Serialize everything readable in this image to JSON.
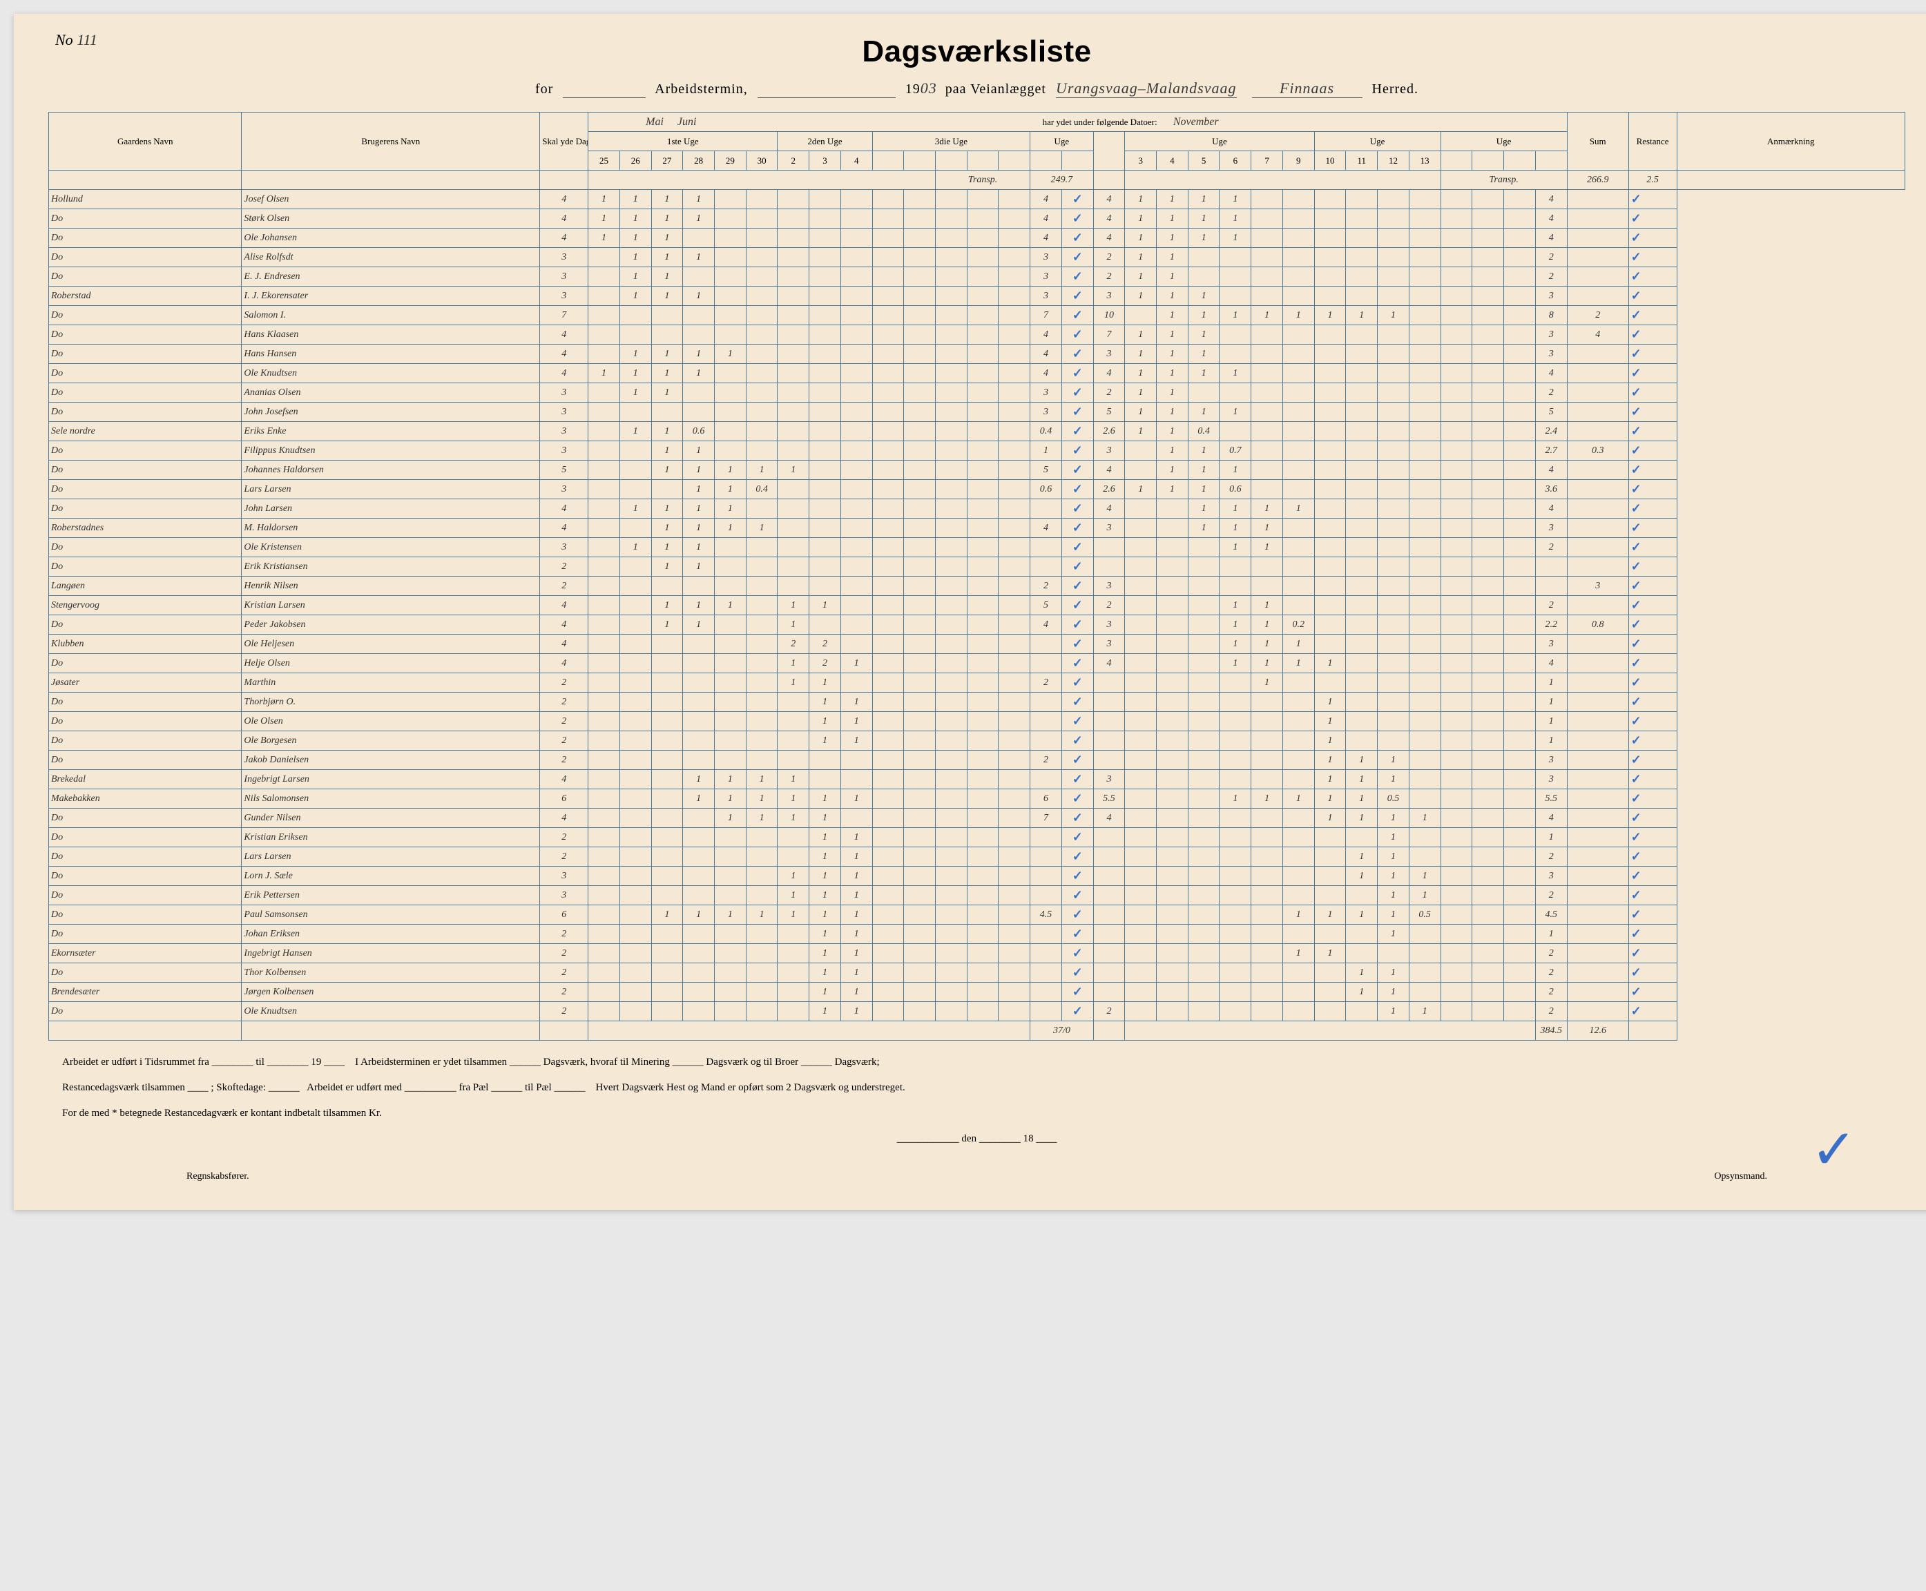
{
  "meta": {
    "page_no_label": "No",
    "page_no": "111",
    "title": "Dagsværksliste",
    "for_label": "for",
    "termin_label": "Arbeidstermin,",
    "year_prefix": "19",
    "year_suffix": "03",
    "paa_label": "paa Veianlægget",
    "anlegg": "Urangsvaag–Malandsvaag",
    "herred": "Finnaas",
    "herred_label": "Herred.",
    "datoer_label": "har ydet under følgende Datoer:",
    "month1": "Mai",
    "month2": "Juni",
    "month3": "November"
  },
  "columns": {
    "gaard": "Gaardens Navn",
    "bruger": "Brugerens Navn",
    "skal": "Skal yde Dagsværk",
    "uge1": "1ste Uge",
    "uge2": "2den Uge",
    "uge3": "3die Uge",
    "uge_g": "Uge",
    "sum": "Sum",
    "rest": "Restance",
    "anm": "Anmærkning",
    "days_a": [
      "25",
      "26",
      "27",
      "28",
      "29",
      "30",
      "2",
      "3",
      "4"
    ],
    "days_b": [
      "3",
      "4",
      "5",
      "6",
      "7",
      "9",
      "10",
      "11",
      "12",
      "13"
    ]
  },
  "transp_in": {
    "label": "Transp.",
    "value": "249.7"
  },
  "transp_out": {
    "label": "Transp.",
    "value": "266.9",
    "rest": "2.5"
  },
  "rows": [
    {
      "g": "Hollund",
      "n": "Josef Olsen",
      "s": "4",
      "a": [
        1,
        1,
        1,
        1,
        0,
        0,
        0,
        0,
        0
      ],
      "m": "4",
      "b": [
        1,
        1,
        1,
        1,
        0,
        0,
        0,
        0,
        0,
        0
      ],
      "sum": "4",
      "r": "",
      "chk": true,
      "c2": "4"
    },
    {
      "g": "Do",
      "n": "Størk Olsen",
      "s": "4",
      "a": [
        1,
        1,
        1,
        1,
        0,
        0,
        0,
        0,
        0
      ],
      "m": "4",
      "b": [
        1,
        1,
        1,
        1,
        0,
        0,
        0,
        0,
        0,
        0
      ],
      "sum": "4",
      "r": "",
      "chk": true,
      "c2": "4"
    },
    {
      "g": "Do",
      "n": "Ole Johansen",
      "s": "4",
      "a": [
        1,
        1,
        1,
        0,
        0,
        0,
        0,
        0,
        0
      ],
      "m": "4",
      "b": [
        1,
        1,
        1,
        1,
        0,
        0,
        0,
        0,
        0,
        0
      ],
      "sum": "4",
      "r": "",
      "chk": true,
      "c2": "4"
    },
    {
      "g": "Do",
      "n": "Alise Rolfsdt",
      "s": "3",
      "a": [
        0,
        1,
        1,
        1,
        0,
        0,
        0,
        0,
        0
      ],
      "m": "3",
      "b": [
        1,
        1,
        0,
        0,
        0,
        0,
        0,
        0,
        0,
        0
      ],
      "sum": "2",
      "r": "",
      "chk": true,
      "c2": "2"
    },
    {
      "g": "Do",
      "n": "E. J. Endresen",
      "s": "3",
      "a": [
        0,
        1,
        1,
        0,
        0,
        0,
        0,
        0,
        0
      ],
      "m": "3",
      "b": [
        1,
        1,
        0,
        0,
        0,
        0,
        0,
        0,
        0,
        0
      ],
      "sum": "2",
      "r": "",
      "chk": true,
      "c2": "2"
    },
    {
      "g": "Roberstad",
      "n": "I. J. Ekorensater",
      "s": "3",
      "a": [
        0,
        1,
        1,
        1,
        0,
        0,
        0,
        0,
        0
      ],
      "m": "3",
      "b": [
        1,
        1,
        1,
        0,
        0,
        0,
        0,
        0,
        0,
        0
      ],
      "sum": "3",
      "r": "",
      "chk": true,
      "c2": "3"
    },
    {
      "g": "Do",
      "n": "Salomon I.",
      "s": "7",
      "a": [
        0,
        0,
        0,
        0,
        0,
        0,
        0,
        0,
        0
      ],
      "m": "7",
      "b": [
        0,
        1,
        1,
        1,
        1,
        1,
        1,
        1,
        1,
        0
      ],
      "sum": "8",
      "r": "2",
      "chk": true,
      "c2": "10"
    },
    {
      "g": "Do",
      "n": "Hans Klaasen",
      "s": "4",
      "a": [
        0,
        0,
        0,
        0,
        0,
        0,
        0,
        0,
        0
      ],
      "m": "4",
      "b": [
        1,
        1,
        1,
        0,
        0,
        0,
        0,
        0,
        0,
        0
      ],
      "sum": "3",
      "r": "4",
      "chk": true,
      "c2": "7"
    },
    {
      "g": "Do",
      "n": "Hans Hansen",
      "s": "4",
      "a": [
        0,
        1,
        1,
        1,
        1,
        0,
        0,
        0,
        0
      ],
      "m": "4",
      "b": [
        1,
        1,
        1,
        0,
        0,
        0,
        0,
        0,
        0,
        0
      ],
      "sum": "3",
      "r": "",
      "chk": true,
      "c2": "3"
    },
    {
      "g": "Do",
      "n": "Ole Knudtsen",
      "s": "4",
      "a": [
        1,
        1,
        1,
        1,
        0,
        0,
        0,
        0,
        0
      ],
      "m": "4",
      "b": [
        1,
        1,
        1,
        1,
        0,
        0,
        0,
        0,
        0,
        0
      ],
      "sum": "4",
      "r": "",
      "chk": true,
      "c2": "4"
    },
    {
      "g": "Do",
      "n": "Ananias Olsen",
      "s": "3",
      "a": [
        0,
        1,
        1,
        0,
        0,
        0,
        0,
        0,
        0
      ],
      "m": "3",
      "b": [
        1,
        1,
        0,
        0,
        0,
        0,
        0,
        0,
        0,
        0
      ],
      "sum": "2",
      "r": "",
      "chk": true,
      "c2": "2"
    },
    {
      "g": "Do",
      "n": "John Josefsen",
      "s": "3",
      "a": [
        0,
        0,
        0,
        0,
        0,
        0,
        0,
        0,
        0
      ],
      "m": "3",
      "b": [
        1,
        1,
        1,
        1,
        0,
        0,
        0,
        0,
        0,
        0
      ],
      "sum": "5",
      "r": "",
      "chk": true,
      "c2": "5"
    },
    {
      "g": "Sele nordre",
      "n": "Eriks Enke",
      "s": "3",
      "a": [
        0,
        1,
        1,
        "0.6",
        0,
        0,
        0,
        0,
        0
      ],
      "m": "0.4",
      "b": [
        1,
        1,
        "0.4",
        0,
        0,
        0,
        0,
        0,
        0,
        0
      ],
      "sum": "2.4",
      "r": "",
      "chk": true,
      "c2": "2.6"
    },
    {
      "g": "Do",
      "n": "Filippus Knudtsen",
      "s": "3",
      "a": [
        0,
        0,
        1,
        1,
        0,
        0,
        0,
        0,
        0
      ],
      "m": "1",
      "b": [
        0,
        1,
        1,
        "0.7",
        0,
        0,
        0,
        0,
        0,
        0
      ],
      "sum": "2.7",
      "r": "0.3",
      "chk": true,
      "c2": "3"
    },
    {
      "g": "Do",
      "n": "Johannes Haldorsen",
      "s": "5",
      "a": [
        0,
        0,
        1,
        1,
        1,
        1,
        1,
        0,
        0
      ],
      "m": "5",
      "b": [
        0,
        1,
        1,
        1,
        0,
        0,
        0,
        0,
        0,
        0
      ],
      "sum": "4",
      "r": "",
      "chk": true,
      "c2": "4"
    },
    {
      "g": "Do",
      "n": "Lars Larsen",
      "s": "3",
      "a": [
        0,
        0,
        0,
        1,
        1,
        "0.4",
        0,
        0,
        0
      ],
      "m": "0.6",
      "b": [
        1,
        1,
        1,
        "0.6",
        0,
        0,
        0,
        0,
        0,
        0
      ],
      "sum": "3.6",
      "r": "",
      "chk": true,
      "c2": "2.6"
    },
    {
      "g": "Do",
      "n": "John Larsen",
      "s": "4",
      "a": [
        0,
        1,
        1,
        1,
        1,
        0,
        0,
        0,
        0
      ],
      "m": "",
      "b": [
        0,
        0,
        1,
        1,
        1,
        1,
        0,
        0,
        0,
        0
      ],
      "sum": "4",
      "r": "",
      "chk": true,
      "c2": "4"
    },
    {
      "g": "Roberstadnes",
      "n": "M. Haldorsen",
      "s": "4",
      "a": [
        0,
        0,
        1,
        1,
        1,
        1,
        0,
        0,
        0
      ],
      "m": "4",
      "b": [
        0,
        0,
        1,
        1,
        1,
        0,
        0,
        0,
        0,
        0
      ],
      "sum": "3",
      "r": "",
      "chk": true,
      "c2": "3"
    },
    {
      "g": "Do",
      "n": "Ole Kristensen",
      "s": "3",
      "a": [
        0,
        1,
        1,
        1,
        0,
        0,
        0,
        0,
        0
      ],
      "m": "",
      "b": [
        0,
        0,
        0,
        1,
        1,
        0,
        0,
        0,
        0,
        0
      ],
      "sum": "2",
      "r": "",
      "chk": true,
      "c2": ""
    },
    {
      "g": "Do",
      "n": "Erik Kristiansen",
      "s": "2",
      "a": [
        0,
        0,
        1,
        1,
        0,
        0,
        0,
        0,
        0
      ],
      "m": "",
      "b": [
        0,
        0,
        0,
        0,
        0,
        0,
        0,
        0,
        0,
        0
      ],
      "sum": "",
      "r": "",
      "chk": true,
      "c2": ""
    },
    {
      "g": "Langøen",
      "n": "Henrik Nilsen",
      "s": "2",
      "a": [
        0,
        0,
        0,
        0,
        0,
        0,
        0,
        0,
        0
      ],
      "m": "2",
      "b": [
        0,
        0,
        0,
        0,
        0,
        0,
        0,
        0,
        0,
        0
      ],
      "sum": "",
      "r": "3",
      "chk": true,
      "c2": "3"
    },
    {
      "g": "Stengervoog",
      "n": "Kristian Larsen",
      "s": "4",
      "a": [
        0,
        0,
        1,
        1,
        1,
        0,
        1,
        1,
        0
      ],
      "m": "5",
      "b": [
        0,
        0,
        0,
        1,
        1,
        0,
        0,
        0,
        0,
        0
      ],
      "sum": "2",
      "r": "",
      "chk": true,
      "c2": "2"
    },
    {
      "g": "Do",
      "n": "Peder Jakobsen",
      "s": "4",
      "a": [
        0,
        0,
        1,
        1,
        0,
        0,
        1,
        0,
        0
      ],
      "m": "4",
      "b": [
        0,
        0,
        0,
        1,
        1,
        "0.2",
        0,
        0,
        0,
        0
      ],
      "sum": "2.2",
      "r": "0.8",
      "chk": true,
      "c2": "3"
    },
    {
      "g": "Klubben",
      "n": "Ole Heljesen",
      "s": "4",
      "a": [
        0,
        0,
        0,
        0,
        0,
        0,
        "2",
        "2",
        0
      ],
      "m": "",
      "b": [
        0,
        0,
        0,
        1,
        1,
        1,
        0,
        0,
        0,
        0
      ],
      "sum": "3",
      "r": "",
      "chk": true,
      "c2": "3"
    },
    {
      "g": "Do",
      "n": "Helje Olsen",
      "s": "4",
      "a": [
        0,
        0,
        0,
        0,
        0,
        0,
        1,
        "2",
        1
      ],
      "m": "",
      "b": [
        0,
        0,
        0,
        1,
        1,
        1,
        1,
        0,
        0,
        0
      ],
      "sum": "4",
      "r": "",
      "chk": true,
      "c2": "4"
    },
    {
      "g": "Jøsater",
      "n": "Marthin",
      "s": "2",
      "a": [
        0,
        0,
        0,
        0,
        0,
        0,
        1,
        1,
        0
      ],
      "m": "2",
      "b": [
        0,
        0,
        0,
        0,
        1,
        0,
        0,
        0,
        0,
        0
      ],
      "sum": "1",
      "r": "",
      "chk": true,
      "c2": ""
    },
    {
      "g": "Do",
      "n": "Thorbjørn O.",
      "s": "2",
      "a": [
        0,
        0,
        0,
        0,
        0,
        0,
        0,
        1,
        1
      ],
      "m": "",
      "b": [
        0,
        0,
        0,
        0,
        0,
        0,
        1,
        0,
        0,
        0
      ],
      "sum": "1",
      "r": "",
      "chk": true,
      "c2": ""
    },
    {
      "g": "Do",
      "n": "Ole Olsen",
      "s": "2",
      "a": [
        0,
        0,
        0,
        0,
        0,
        0,
        0,
        1,
        1
      ],
      "m": "",
      "b": [
        0,
        0,
        0,
        0,
        0,
        0,
        1,
        0,
        0,
        0
      ],
      "sum": "1",
      "r": "",
      "chk": true,
      "c2": ""
    },
    {
      "g": "Do",
      "n": "Ole Borgesen",
      "s": "2",
      "a": [
        0,
        0,
        0,
        0,
        0,
        0,
        0,
        1,
        1
      ],
      "m": "",
      "b": [
        0,
        0,
        0,
        0,
        0,
        0,
        1,
        0,
        0,
        0
      ],
      "sum": "1",
      "r": "",
      "chk": true,
      "c2": ""
    },
    {
      "g": "Do",
      "n": "Jakob Danielsen",
      "s": "2",
      "a": [
        0,
        0,
        0,
        0,
        0,
        0,
        0,
        0,
        0
      ],
      "m": "2",
      "b": [
        0,
        0,
        0,
        0,
        0,
        0,
        1,
        1,
        1,
        0
      ],
      "sum": "3",
      "r": "",
      "chk": true,
      "c2": ""
    },
    {
      "g": "Brekedal",
      "n": "Ingebrigt Larsen",
      "s": "4",
      "a": [
        0,
        0,
        0,
        1,
        1,
        1,
        1,
        0,
        0
      ],
      "m": "",
      "b": [
        0,
        0,
        0,
        0,
        0,
        0,
        1,
        1,
        1,
        0
      ],
      "sum": "3",
      "r": "",
      "chk": true,
      "c2": "3"
    },
    {
      "g": "Makebakken",
      "n": "Nils Salomonsen",
      "s": "6",
      "a": [
        0,
        0,
        0,
        1,
        1,
        1,
        1,
        1,
        1
      ],
      "m": "6",
      "b": [
        0,
        0,
        0,
        1,
        1,
        1,
        1,
        1,
        "0.5",
        0
      ],
      "sum": "5.5",
      "r": "",
      "chk": true,
      "c2": "5.5"
    },
    {
      "g": "Do",
      "n": "Gunder Nilsen",
      "s": "4",
      "a": [
        0,
        0,
        0,
        0,
        1,
        1,
        1,
        1,
        0
      ],
      "m": "7",
      "b": [
        0,
        0,
        0,
        0,
        0,
        0,
        1,
        1,
        1,
        1
      ],
      "sum": "4",
      "r": "",
      "chk": true,
      "c2": "4"
    },
    {
      "g": "Do",
      "n": "Kristian Eriksen",
      "s": "2",
      "a": [
        0,
        0,
        0,
        0,
        0,
        0,
        0,
        1,
        1
      ],
      "m": "",
      "b": [
        0,
        0,
        0,
        0,
        0,
        0,
        0,
        0,
        1,
        0
      ],
      "sum": "1",
      "r": "",
      "chk": true,
      "c2": ""
    },
    {
      "g": "Do",
      "n": "Lars Larsen",
      "s": "2",
      "a": [
        0,
        0,
        0,
        0,
        0,
        0,
        0,
        1,
        1
      ],
      "m": "",
      "b": [
        0,
        0,
        0,
        0,
        0,
        0,
        0,
        1,
        1,
        0
      ],
      "sum": "2",
      "r": "",
      "chk": true,
      "c2": ""
    },
    {
      "g": "Do",
      "n": "Lorn J. Sæle",
      "s": "3",
      "a": [
        0,
        0,
        0,
        0,
        0,
        0,
        1,
        1,
        1
      ],
      "m": "",
      "b": [
        0,
        0,
        0,
        0,
        0,
        0,
        0,
        1,
        1,
        1
      ],
      "sum": "3",
      "r": "",
      "chk": true,
      "c2": ""
    },
    {
      "g": "Do",
      "n": "Erik Pettersen",
      "s": "3",
      "a": [
        0,
        0,
        0,
        0,
        0,
        0,
        1,
        1,
        1
      ],
      "m": "",
      "b": [
        0,
        0,
        0,
        0,
        0,
        0,
        0,
        0,
        1,
        1
      ],
      "sum": "2",
      "r": "",
      "chk": true,
      "c2": ""
    },
    {
      "g": "Do",
      "n": "Paul Samsonsen",
      "s": "6",
      "a": [
        0,
        0,
        1,
        1,
        1,
        1,
        1,
        1,
        1
      ],
      "m": "4.5",
      "b": [
        0,
        0,
        0,
        0,
        0,
        1,
        1,
        1,
        1,
        "0.5"
      ],
      "sum": "4.5",
      "r": "",
      "chk": true,
      "c2": ""
    },
    {
      "g": "Do",
      "n": "Johan Eriksen",
      "s": "2",
      "a": [
        0,
        0,
        0,
        0,
        0,
        0,
        0,
        1,
        1
      ],
      "m": "",
      "b": [
        0,
        0,
        0,
        0,
        0,
        0,
        0,
        0,
        1,
        0
      ],
      "sum": "1",
      "r": "",
      "chk": true,
      "c2": ""
    },
    {
      "g": "Ekornsæter",
      "n": "Ingebrigt Hansen",
      "s": "2",
      "a": [
        0,
        0,
        0,
        0,
        0,
        0,
        0,
        1,
        1
      ],
      "m": "",
      "b": [
        0,
        0,
        0,
        0,
        0,
        1,
        1,
        0,
        0,
        0
      ],
      "sum": "2",
      "r": "",
      "chk": true,
      "c2": ""
    },
    {
      "g": "Do",
      "n": "Thor Kolbensen",
      "s": "2",
      "a": [
        0,
        0,
        0,
        0,
        0,
        0,
        0,
        1,
        1
      ],
      "m": "",
      "b": [
        0,
        0,
        0,
        0,
        0,
        0,
        0,
        1,
        1,
        0
      ],
      "sum": "2",
      "r": "",
      "chk": true,
      "c2": ""
    },
    {
      "g": "Brendesæter",
      "n": "Jørgen Kolbensen",
      "s": "2",
      "a": [
        0,
        0,
        0,
        0,
        0,
        0,
        0,
        1,
        1
      ],
      "m": "",
      "b": [
        0,
        0,
        0,
        0,
        0,
        0,
        0,
        1,
        1,
        0
      ],
      "sum": "2",
      "r": "",
      "chk": true,
      "c2": ""
    },
    {
      "g": "Do",
      "n": "Ole Knudtsen",
      "s": "2",
      "a": [
        0,
        0,
        0,
        0,
        0,
        0,
        0,
        1,
        1
      ],
      "m": "",
      "b": [
        0,
        0,
        0,
        0,
        0,
        0,
        0,
        0,
        1,
        1
      ],
      "sum": "2",
      "r": "",
      "chk": true,
      "c2": "2"
    }
  ],
  "totals": {
    "mid": "37/0",
    "sum": "384.5",
    "rest": "12.6"
  },
  "footer": {
    "l1a": "Arbeidet er udført i Tidsrummet fra",
    "l1b": "til",
    "l1c": "19",
    "l1d": "I Arbeidsterminen er ydet tilsammen",
    "l1e": "Dagsværk, hvoraf til Minering",
    "l1f": "Dagsværk og til Broer",
    "l1g": "Dagsværk;",
    "l2a": "Restancedagsværk tilsammen",
    "l2b": "; Skoftedage:",
    "l2c": "Arbeidet er udført med",
    "l2d": "fra Pæl",
    "l2e": "til Pæl",
    "l2f": "Hvert Dagsværk Hest og Mand er opført som 2 Dagsværk og understreget.",
    "l3": "For de med * betegnede Restancedagværk er kontant indbetalt tilsammen Kr.",
    "l4a": "den",
    "l4b": "18",
    "sig1": "Regnskabsfører.",
    "sig2": "Opsynsmand."
  }
}
